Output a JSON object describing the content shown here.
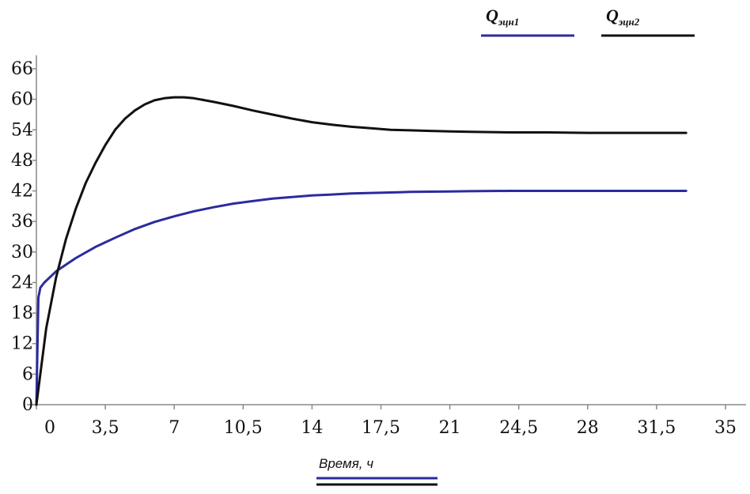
{
  "chart_data": {
    "type": "line",
    "title": "",
    "xlabel": "Время, ч",
    "ylabel": "",
    "xlim": [
      0,
      35
    ],
    "ylim": [
      0,
      66
    ],
    "x_ticks": [
      "0",
      "3,5",
      "7",
      "10,5",
      "14",
      "17,5",
      "21",
      "24,5",
      "28",
      "31,5",
      "35"
    ],
    "y_ticks": [
      "0",
      "6",
      "12",
      "18",
      "24",
      "30",
      "36",
      "42",
      "48",
      "54",
      "60",
      "66"
    ],
    "grid": false,
    "legend_position": "top-right",
    "series": [
      {
        "name": "Qэцн1",
        "legend_main": "Q",
        "legend_sub": "эцн1",
        "color": "#2b2b9e",
        "x": [
          0,
          0.1,
          0.2,
          0.4,
          1,
          2,
          3,
          4,
          5,
          6,
          7,
          8,
          9,
          10,
          11,
          12,
          13,
          14,
          15,
          16,
          17,
          18,
          19,
          20,
          21,
          22,
          24,
          26,
          28,
          30,
          32,
          33
        ],
        "y": [
          0,
          21,
          23,
          24,
          26.2,
          28.8,
          31,
          32.8,
          34.5,
          35.9,
          37,
          38,
          38.8,
          39.5,
          40,
          40.5,
          40.8,
          41.1,
          41.3,
          41.5,
          41.6,
          41.7,
          41.8,
          41.85,
          41.9,
          41.95,
          42,
          42,
          42,
          42,
          42,
          42
        ]
      },
      {
        "name": "Qэцн2",
        "legend_main": "Q",
        "legend_sub": "эцн2",
        "color": "#111111",
        "x": [
          0,
          0.5,
          1,
          1.5,
          2,
          2.5,
          3,
          3.5,
          4,
          4.5,
          5,
          5.5,
          6,
          6.5,
          7,
          7.5,
          8,
          9,
          10,
          11,
          12,
          13,
          14,
          15,
          16,
          17,
          18,
          19,
          20,
          21,
          22,
          24,
          26,
          28,
          30,
          32,
          33
        ],
        "y": [
          0,
          15,
          25,
          32.5,
          38.5,
          43.5,
          47.5,
          51,
          54,
          56.2,
          57.8,
          59,
          59.8,
          60.2,
          60.4,
          60.4,
          60.2,
          59.5,
          58.7,
          57.8,
          57,
          56.2,
          55.5,
          55,
          54.6,
          54.3,
          54,
          53.9,
          53.8,
          53.7,
          53.6,
          53.5,
          53.5,
          53.4,
          53.4,
          53.4,
          53.4
        ]
      }
    ]
  }
}
